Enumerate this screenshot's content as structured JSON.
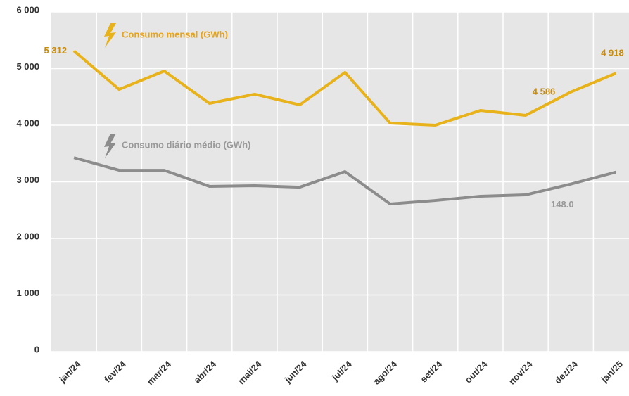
{
  "chart_data": {
    "type": "line",
    "categories": [
      "jan/24",
      "fev/24",
      "mar/24",
      "abr/24",
      "mai/24",
      "jun/24",
      "jul/24",
      "ago/24",
      "set/24",
      "out/24",
      "nov/24",
      "dez/24",
      "jan/25"
    ],
    "series": [
      {
        "name": "Consumo mensal (GWh)",
        "color": "#e8b21a",
        "values": [
          5312,
          4633,
          4957,
          4385,
          4547,
          4360,
          4932,
          4037,
          4000,
          4261,
          4174,
          4586,
          4918
        ],
        "value_labels": [
          "5 312",
          null,
          null,
          null,
          null,
          null,
          null,
          null,
          null,
          null,
          null,
          "4 586",
          "4 918"
        ]
      },
      {
        "name": "Consumo diário médio (GWh)",
        "color": "#8c8c8c",
        "axis": "y2",
        "values": [
          171.3,
          160.2,
          160.2,
          146.0,
          146.6,
          145.3,
          159.0,
          130.4,
          133.5,
          137.3,
          138.5,
          148.0,
          158.6
        ],
        "value_labels": [
          null,
          null,
          null,
          null,
          null,
          null,
          null,
          null,
          null,
          null,
          null,
          "148.0",
          null
        ]
      }
    ],
    "ylim": [
      0,
      6000
    ],
    "yticks": [
      0,
      {
        "value": 1000,
        "label": "1 000"
      },
      {
        "value": 2000,
        "label": "2 000"
      },
      {
        "value": 3000,
        "label": "3 000"
      },
      {
        "value": 4000,
        "label": "4 000"
      },
      {
        "value": 5000,
        "label": "5 000"
      },
      {
        "value": 6000,
        "label": "6 000"
      }
    ],
    "y2lim": [
      0,
      300
    ],
    "grid": true
  }
}
